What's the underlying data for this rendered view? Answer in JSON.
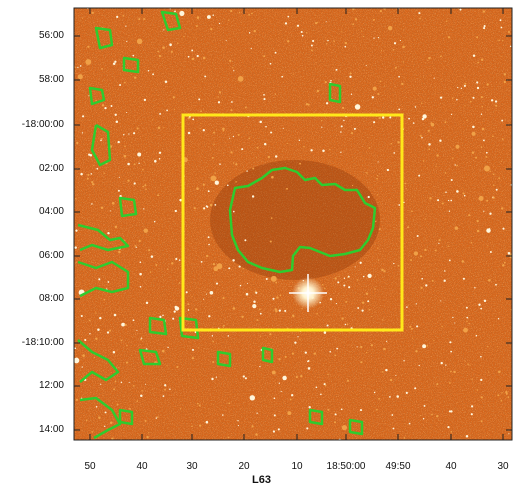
{
  "figure": {
    "title": "L63",
    "y_tick_labels": [
      "56:00",
      "58:00",
      "-18:00:00",
      "02:00",
      "04:00",
      "06:00",
      "08:00",
      "-18:10:00",
      "12:00",
      "14:00"
    ],
    "x_tick_labels": [
      "50",
      "40",
      "30",
      "20",
      "10",
      "18:50:00",
      "49:50",
      "40",
      "30"
    ],
    "colors": {
      "background_dark": "#b24a12",
      "background_mid": "#d9661b",
      "background_light": "#f0a046",
      "star": "#fff6dc",
      "contour": "#2ecc2e",
      "box": "#ffe81a",
      "frame": "#222222"
    }
  }
}
